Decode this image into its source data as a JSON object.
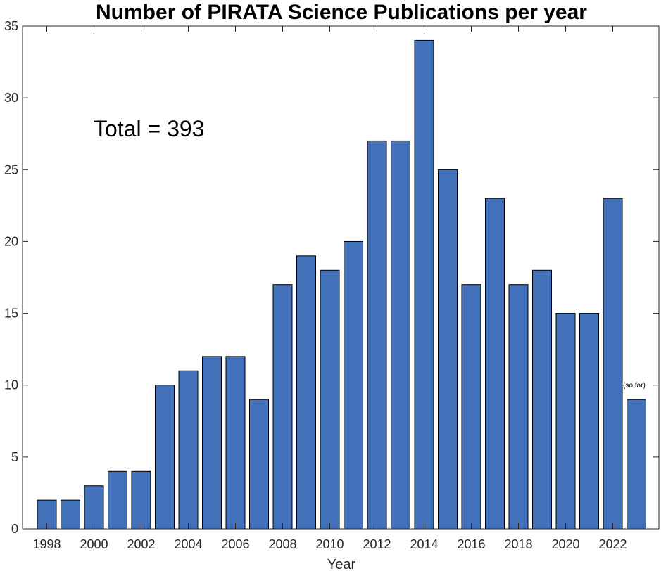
{
  "chart_data": {
    "type": "bar",
    "title": "Number of PIRATA Science Publications per year",
    "xlabel": "Year",
    "ylabel": "",
    "categories": [
      1998,
      1999,
      2000,
      2001,
      2002,
      2003,
      2004,
      2005,
      2006,
      2007,
      2008,
      2009,
      2010,
      2011,
      2012,
      2013,
      2014,
      2015,
      2016,
      2017,
      2018,
      2019,
      2020,
      2021,
      2022,
      2023
    ],
    "values": [
      2,
      2,
      3,
      4,
      4,
      10,
      11,
      12,
      12,
      9,
      17,
      19,
      18,
      20,
      27,
      27,
      34,
      25,
      17,
      23,
      17,
      18,
      15,
      15,
      23,
      9
    ],
    "xticks": [
      "1998",
      "2000",
      "2002",
      "2004",
      "2006",
      "2008",
      "2010",
      "2012",
      "2014",
      "2016",
      "2018",
      "2020",
      "2022"
    ],
    "yticks": [
      "0",
      "5",
      "10",
      "15",
      "20",
      "25",
      "30",
      "35"
    ],
    "ylim": [
      0,
      35
    ],
    "bar_color": "#4271BA",
    "bar_edge_color": "#000000",
    "grid": false,
    "annotation": "Total = 393",
    "last_bar_note": "(so far)"
  }
}
